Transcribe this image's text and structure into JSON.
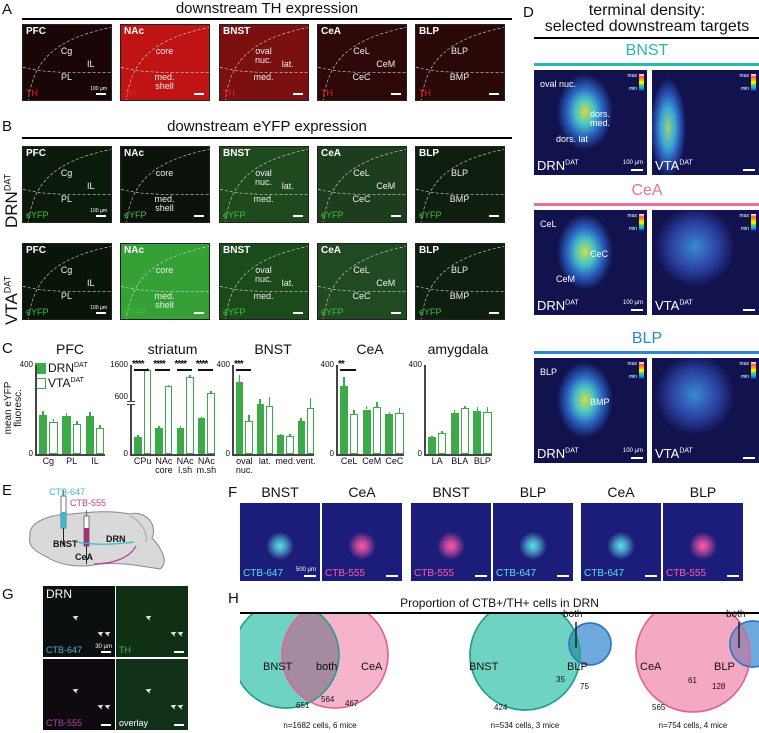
{
  "panel_letters": [
    "A",
    "B",
    "C",
    "D",
    "E",
    "F",
    "G",
    "H"
  ],
  "panelA": {
    "title": "downstream TH expression",
    "stain": "TH",
    "tiles": [
      {
        "region": "PFC",
        "labels": [
          "Cg",
          "PL",
          "IL"
        ],
        "scale": "100 µm"
      },
      {
        "region": "NAc",
        "labels": [
          "core",
          "med. shell"
        ]
      },
      {
        "region": "BNST",
        "labels": [
          "oval nuc.",
          "med.",
          "lat."
        ]
      },
      {
        "region": "CeA",
        "labels": [
          "CeL",
          "CeC",
          "CeM"
        ]
      },
      {
        "region": "BLP",
        "labels": [
          "BLP",
          "BMP"
        ]
      }
    ]
  },
  "panelB": {
    "title": "downstream eYFP expression",
    "stain": "eYFP",
    "rows": [
      {
        "label": "DRN",
        "sup": "DAT"
      },
      {
        "label": "VTA",
        "sup": "DAT"
      }
    ],
    "tiles": [
      {
        "region": "PFC",
        "labels": [
          "Cg",
          "PL",
          "IL"
        ],
        "scale": "100 µm"
      },
      {
        "region": "NAc",
        "labels": [
          "core",
          "med. shell"
        ]
      },
      {
        "region": "BNST",
        "labels": [
          "oval nuc.",
          "med.",
          "lat."
        ]
      },
      {
        "region": "CeA",
        "labels": [
          "CeL",
          "CeC",
          "CeM"
        ]
      },
      {
        "region": "BLP",
        "labels": [
          "BLP",
          "BMP"
        ]
      }
    ]
  },
  "panelC": {
    "ylabel": "mean eYFP fluoresc.",
    "legend": [
      {
        "label": "DRN",
        "sup": "DAT",
        "style": "filled"
      },
      {
        "label": "VTA",
        "sup": "DAT",
        "style": "open"
      }
    ],
    "color": "#3daa4a"
  },
  "chart_data": [
    {
      "type": "bar",
      "title": "PFC",
      "ylabel": "mean eYFP fluoresc.",
      "ylim": [
        0,
        400
      ],
      "yticks": [
        0,
        400
      ],
      "categories": [
        "Cg",
        "PL",
        "IL"
      ],
      "series": [
        {
          "name": "DRN^DAT",
          "values": [
            175,
            170,
            170
          ],
          "err": [
            20,
            15,
            20
          ]
        },
        {
          "name": "VTA^DAT",
          "values": [
            144,
            135,
            117
          ],
          "err": [
            15,
            15,
            15
          ]
        }
      ],
      "significance": []
    },
    {
      "type": "bar",
      "title": "striatum",
      "ylim": [
        0,
        1600
      ],
      "broken_axis": true,
      "yticks": [
        0,
        600,
        1600
      ],
      "categories": [
        "CPu",
        "NAc core",
        "NAc l.sh",
        "NAc m.sh"
      ],
      "series": [
        {
          "name": "DRN^DAT",
          "values": [
            140,
            210,
            210,
            290
          ],
          "err": [
            15,
            15,
            15,
            15
          ]
        },
        {
          "name": "VTA^DAT",
          "values": [
            1450,
            930,
            1230,
            720
          ],
          "err": [
            60,
            40,
            50,
            60
          ]
        }
      ],
      "significance": [
        "****",
        "****",
        "****",
        "****"
      ]
    },
    {
      "type": "bar",
      "title": "BNST",
      "ylim": [
        0,
        400
      ],
      "yticks": [
        0,
        400
      ],
      "categories": [
        "oval nuc.",
        "lat.",
        "med.",
        "vent."
      ],
      "series": [
        {
          "name": "DRN^DAT",
          "values": [
            325,
            225,
            85,
            150
          ],
          "err": [
            30,
            20,
            5,
            10
          ]
        },
        {
          "name": "VTA^DAT",
          "values": [
            150,
            215,
            80,
            205
          ],
          "err": [
            25,
            40,
            10,
            45
          ]
        }
      ],
      "significance": [
        "***",
        "",
        "",
        ""
      ]
    },
    {
      "type": "bar",
      "title": "CeA",
      "ylim": [
        0,
        400
      ],
      "yticks": [
        0,
        400
      ],
      "categories": [
        "CeL",
        "CeM",
        "CeC"
      ],
      "series": [
        {
          "name": "DRN^DAT",
          "values": [
            305,
            200,
            180
          ],
          "err": [
            40,
            15,
            10
          ]
        },
        {
          "name": "VTA^DAT",
          "values": [
            180,
            210,
            185
          ],
          "err": [
            20,
            25,
            20
          ]
        }
      ],
      "significance": [
        "**",
        "",
        ""
      ]
    },
    {
      "type": "bar",
      "title": "amygdala",
      "ylim": [
        0,
        400
      ],
      "yticks": [
        0,
        400
      ],
      "categories": [
        "LA",
        "BLA",
        "BLP"
      ],
      "series": [
        {
          "name": "DRN^DAT",
          "values": [
            75,
            185,
            195
          ],
          "err": [
            8,
            15,
            15
          ]
        },
        {
          "name": "VTA^DAT",
          "values": [
            95,
            205,
            190
          ],
          "err": [
            8,
            10,
            20
          ]
        }
      ],
      "significance": [
        "",
        "",
        ""
      ]
    },
    {
      "type": "venn",
      "title": "Proportion of CTB+/TH+ cells in DRN",
      "sets": [
        "BNST",
        "CeA"
      ],
      "counts": {
        "BNST_only": 651,
        "both": 564,
        "CeA_only": 467
      },
      "caption": "n=1682 cells, 6 mice"
    },
    {
      "type": "venn",
      "sets": [
        "BNST",
        "BLP"
      ],
      "counts": {
        "BNST_only": 424,
        "both": 35,
        "BLP_only": 75
      },
      "caption": "n=534 cells, 3 mice"
    },
    {
      "type": "venn",
      "sets": [
        "CeA",
        "BLP"
      ],
      "counts": {
        "CeA_only": 565,
        "both": 61,
        "BLP_only": 128
      },
      "caption": "n=754 cells, 4 mice"
    }
  ],
  "panelD": {
    "title_line1": "terminal density:",
    "title_line2": "selected downstream targets",
    "cbar_max": "max",
    "cbar_min": "min",
    "scale": "100 µm",
    "sections": [
      {
        "name": "BNST",
        "color": "#27b9a6",
        "labels_left": [
          "oval nuc.",
          "dors. med.",
          "dors. lat"
        ]
      },
      {
        "name": "CeA",
        "color": "#e8719a",
        "labels_left": [
          "CeL",
          "CeC",
          "CeM"
        ]
      },
      {
        "name": "BLP",
        "color": "#2a88c8",
        "labels_left": [
          "BLP",
          "BMP"
        ]
      }
    ],
    "corner_left": {
      "label": "DRN",
      "sup": "DAT"
    },
    "corner_right": {
      "label": "VTA",
      "sup": "DAT"
    }
  },
  "panelE": {
    "tracer1": "CTB-647",
    "tracer2": "CTB-555",
    "regions": [
      "BNST",
      "CeA",
      "DRN"
    ],
    "tracer1_color": "#3ab8d0",
    "tracer2_color": "#b0469a"
  },
  "panelF": {
    "pairs": [
      {
        "left": "BNST",
        "left_stain": "CTB-647",
        "right": "CeA",
        "right_stain": "CTB-555"
      },
      {
        "left": "BNST",
        "left_stain": "CTB-555",
        "right": "BLP",
        "right_stain": "CTB-647"
      },
      {
        "left": "CeA",
        "left_stain": "CTB-647",
        "right": "BLP",
        "right_stain": "CTB-555"
      }
    ],
    "scale": "500 µm"
  },
  "panelG": {
    "title": "DRN",
    "tiles": [
      "CTB-647",
      "TH",
      "CTB-555",
      "overlay"
    ],
    "scale": "30 µm"
  },
  "panelH": {
    "title": "Proportion of CTB+/TH+ cells in DRN",
    "venn1": {
      "a": "BNST",
      "both": "both",
      "b": "CeA",
      "n_a": "651",
      "n_both": "564",
      "n_b": "467",
      "caption": "n=1682 cells, 6 mice"
    },
    "venn2": {
      "a": "BNST",
      "both": "both",
      "b": "BLP",
      "n_a": "424",
      "n_both": "35",
      "n_b": "75",
      "caption": "n=534 cells, 3 mice"
    },
    "venn3": {
      "a": "CeA",
      "both": "both",
      "b": "BLP",
      "n_a": "565",
      "n_both": "61",
      "n_b": "128",
      "caption": "n=754 cells, 4 mice"
    },
    "colors": {
      "BNST": "#6fd3c3",
      "CeA": "#f5a8c4",
      "BLP": "#6ea8dc",
      "BNST_stroke": "#1f9e8a",
      "CeA_stroke": "#e2648e",
      "BLP_stroke": "#2a78c0"
    }
  }
}
